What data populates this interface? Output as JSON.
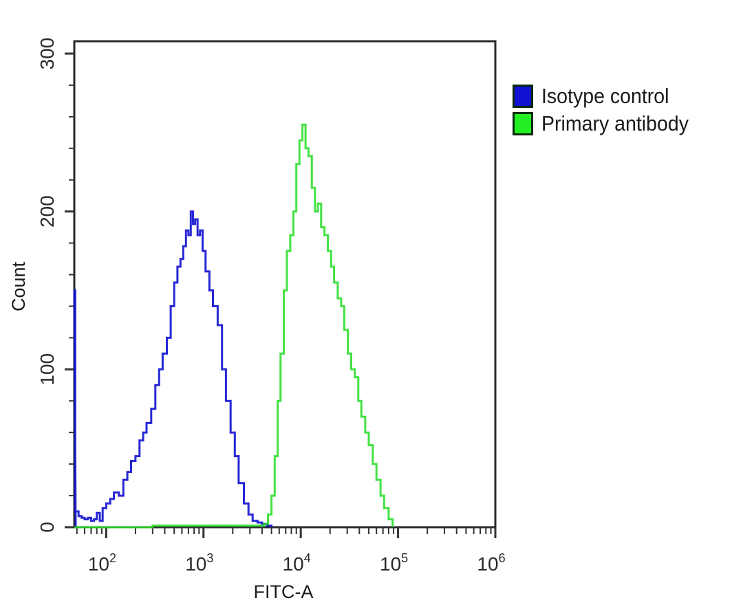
{
  "chart_data": {
    "type": "line",
    "title": "",
    "xlabel": "FITC-A",
    "ylabel": "Count",
    "xscale": "log",
    "xlim": [
      47,
      1000000
    ],
    "ylim": [
      0,
      300
    ],
    "grid": false,
    "legend_position": "right-top, outside plot",
    "y_ticks": [
      0,
      100,
      200,
      300
    ],
    "y_tick_labels": [
      "0",
      "100",
      "200",
      "300"
    ],
    "x_ticks": [
      100,
      1000,
      10000,
      100000,
      1000000
    ],
    "x_tick_labels": [
      {
        "base": "10",
        "exp": "2"
      },
      {
        "base": "10",
        "exp": "3"
      },
      {
        "base": "10",
        "exp": "4"
      },
      {
        "base": "10",
        "exp": "5"
      },
      {
        "base": "10",
        "exp": "6"
      }
    ],
    "series": [
      {
        "name": "Isotype control",
        "color": "#1010d0",
        "x": [
          47,
          48,
          52,
          56,
          60,
          65,
          70,
          75,
          80,
          86,
          92,
          100,
          110,
          120,
          135,
          150,
          165,
          180,
          200,
          220,
          240,
          260,
          290,
          320,
          350,
          380,
          420,
          460,
          500,
          540,
          580,
          620,
          660,
          700,
          740,
          780,
          820,
          870,
          920,
          980,
          1050,
          1150,
          1250,
          1400,
          1550,
          1700,
          1900,
          2100,
          2300,
          2600,
          2900,
          3200,
          3600,
          4000,
          4500,
          5000
        ],
        "values": [
          150,
          10,
          7,
          6,
          5,
          6,
          4,
          5,
          9,
          4,
          12,
          15,
          18,
          22,
          20,
          30,
          35,
          42,
          45,
          55,
          60,
          66,
          75,
          90,
          100,
          110,
          120,
          140,
          155,
          165,
          170,
          178,
          188,
          185,
          200,
          192,
          195,
          185,
          188,
          175,
          162,
          150,
          140,
          128,
          100,
          80,
          60,
          45,
          28,
          15,
          8,
          4,
          3,
          2,
          1,
          0
        ]
      },
      {
        "name": "Primary antibody",
        "color": "#22dd22",
        "x": [
          47,
          300,
          1000,
          3000,
          4200,
          4600,
          5000,
          5400,
          5800,
          6200,
          6700,
          7200,
          7800,
          8400,
          9000,
          9700,
          10400,
          11200,
          12000,
          13000,
          14000,
          15000,
          16200,
          17500,
          19000,
          20500,
          22000,
          24000,
          26000,
          28000,
          30500,
          33000,
          36000,
          39000,
          42000,
          46000,
          50000,
          55000,
          60000,
          66000,
          72000,
          80000,
          88000
        ],
        "values": [
          0,
          1,
          1,
          1,
          2,
          8,
          20,
          45,
          80,
          110,
          150,
          175,
          185,
          200,
          230,
          245,
          255,
          240,
          235,
          215,
          200,
          205,
          190,
          185,
          175,
          165,
          155,
          145,
          140,
          125,
          110,
          100,
          95,
          80,
          70,
          60,
          52,
          40,
          30,
          20,
          12,
          5,
          0
        ]
      }
    ]
  },
  "legend": {
    "items": [
      {
        "label": "Isotype control",
        "color": "#1010d0"
      },
      {
        "label": "Primary antibody",
        "color": "#22ee22"
      }
    ]
  },
  "axes": {
    "x_title": "FITC-A",
    "y_title": "Count"
  }
}
